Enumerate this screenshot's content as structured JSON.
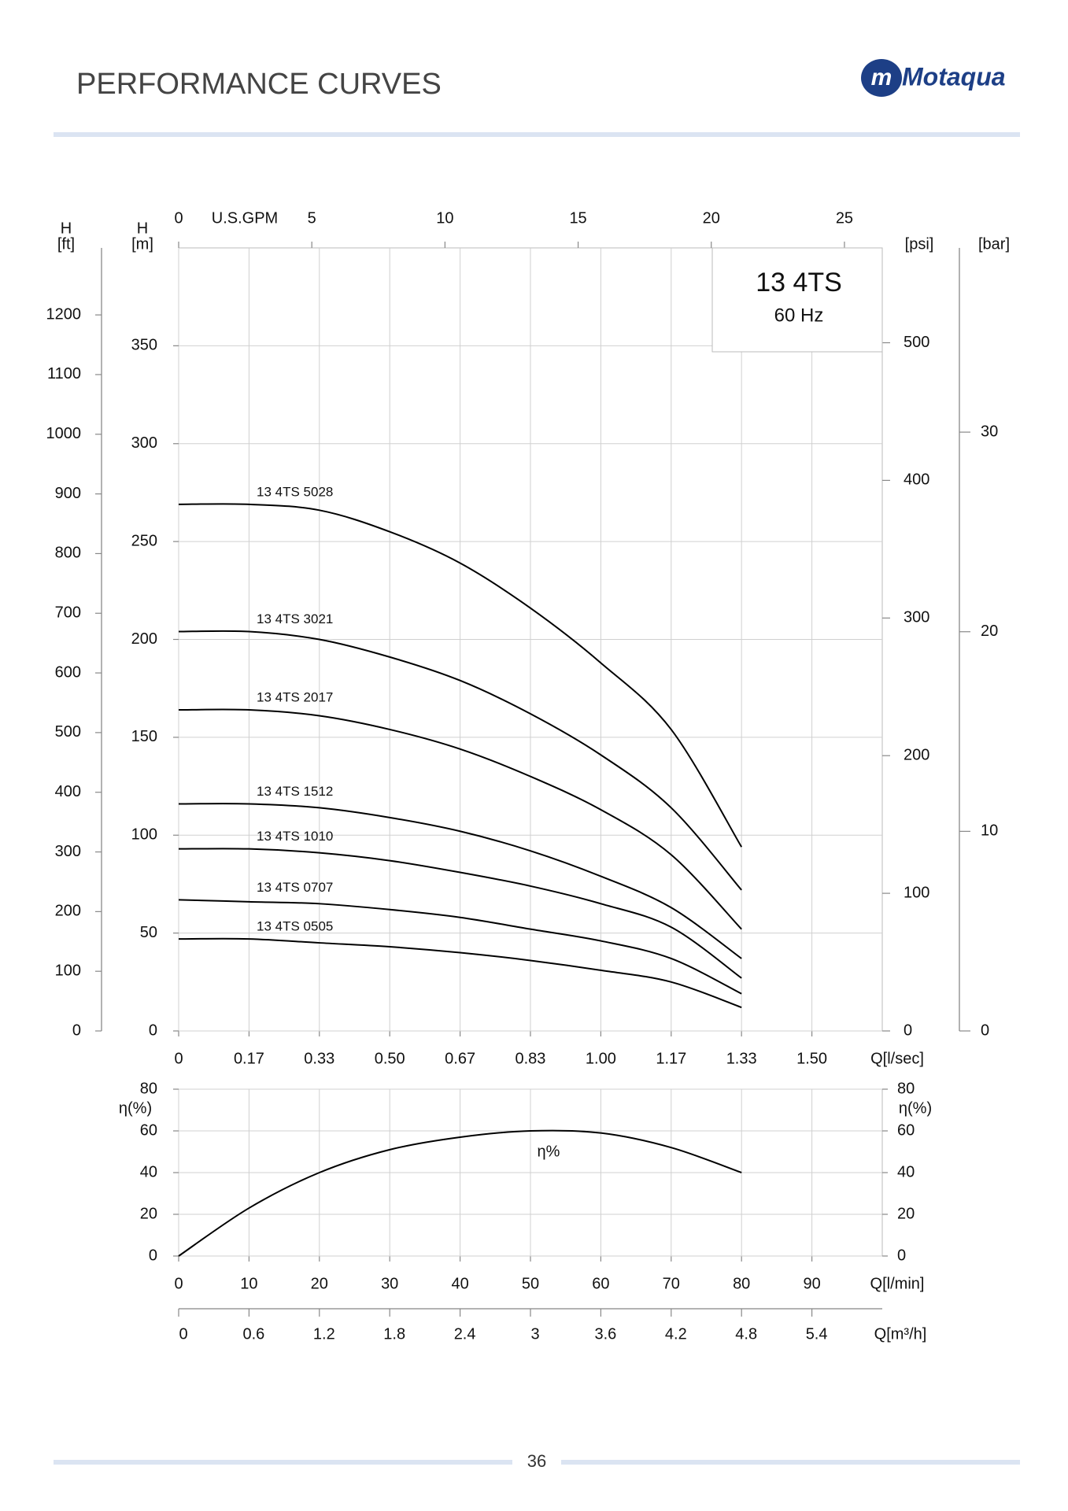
{
  "header": {
    "title": "PERFORMANCE CURVES",
    "logo": "Motaqua"
  },
  "page_number": "36",
  "chart_data": [
    {
      "type": "line",
      "model": "13 4TS",
      "frequency": "60 Hz",
      "xlabel": "Q[l/sec]",
      "x": [
        0,
        0.1667,
        0.3333,
        0.5,
        0.6667,
        0.8333,
        1.0,
        1.1667,
        1.3333
      ],
      "xlim": [
        0,
        1.6667
      ],
      "xticks": [
        0,
        {
          "value": 0.1667,
          "label": "0.17"
        },
        {
          "value": 0.3333,
          "label": "0.33"
        },
        {
          "value": 0.5,
          "label": "0.50"
        },
        {
          "value": 0.6667,
          "label": "0.67"
        },
        {
          "value": 0.8333,
          "label": "0.83"
        },
        {
          "value": 1.0,
          "label": "1.00"
        },
        {
          "value": 1.1667,
          "label": "1.17"
        },
        {
          "value": 1.3333,
          "label": "1.33"
        },
        {
          "value": 1.5,
          "label": "1.50"
        }
      ],
      "x2label": "U.S.GPM",
      "x2lim": [
        0,
        26.42
      ],
      "x2ticks": [
        0,
        5,
        10,
        15,
        20,
        25
      ],
      "ylabel": {
        "symbol": "H",
        "unit": "[m]"
      },
      "ylim": [
        0,
        400
      ],
      "yticks": [
        0,
        50,
        100,
        150,
        200,
        250,
        300,
        350
      ],
      "ft_axis": {
        "symbol": "H",
        "unit": "[ft]",
        "lim": [
          0,
          1312.3
        ],
        "ticks": [
          0,
          100,
          200,
          300,
          400,
          500,
          600,
          700,
          800,
          900,
          1000,
          1100,
          1200
        ]
      },
      "psi_axis": {
        "unit": "[psi]",
        "lim": [
          0,
          568.9
        ],
        "ticks": [
          0,
          100,
          200,
          300,
          400,
          500
        ]
      },
      "bar_axis": {
        "unit": "[bar]",
        "lim": [
          0,
          39.23
        ],
        "ticks": [
          0,
          10,
          20,
          30
        ]
      },
      "grid": true,
      "color": "#000000",
      "series": [
        {
          "name": "13 4TS 5028",
          "values": [
            269,
            269,
            266,
            255,
            239,
            216,
            188,
            154,
            94
          ]
        },
        {
          "name": "13 4TS 3021",
          "values": [
            204,
            204,
            200,
            191,
            179,
            162,
            141,
            114,
            72
          ]
        },
        {
          "name": "13 4TS 2017",
          "values": [
            164,
            164,
            161,
            154,
            144,
            130,
            113,
            90,
            52
          ]
        },
        {
          "name": "13 4TS 1512",
          "values": [
            116,
            116,
            114,
            109,
            102,
            92,
            79,
            63,
            37
          ]
        },
        {
          "name": "13 4TS 1010",
          "values": [
            93,
            93,
            91,
            87,
            81,
            74,
            65,
            53,
            27
          ]
        },
        {
          "name": "13 4TS 0707",
          "values": [
            67,
            66,
            65,
            62,
            58,
            52,
            46,
            37,
            19
          ]
        },
        {
          "name": "13 4TS 0505",
          "values": [
            47,
            47,
            45,
            43,
            40,
            36,
            31,
            25,
            12
          ]
        }
      ]
    },
    {
      "type": "line",
      "xlabel": "Q[l/min]",
      "x": [
        0,
        10,
        20,
        30,
        40,
        50,
        60,
        70,
        80
      ],
      "xlim": [
        0,
        100
      ],
      "xticks": [
        0,
        10,
        20,
        30,
        40,
        50,
        60,
        70,
        80,
        90
      ],
      "x2label": "Q[m³/h]",
      "x2lim": [
        0,
        6
      ],
      "x2ticks": [
        0,
        0.6,
        1.2,
        1.8,
        2.4,
        3,
        3.6,
        4.2,
        4.8,
        5.4
      ],
      "ylabel": "η(%)",
      "ylim": [
        0,
        80
      ],
      "yticks": [
        0,
        20,
        40,
        60,
        80
      ],
      "grid": true,
      "color": "#000000",
      "series": [
        {
          "name": "η%",
          "values": [
            0,
            23,
            40,
            51,
            57,
            60,
            59,
            52,
            40
          ]
        }
      ]
    }
  ]
}
